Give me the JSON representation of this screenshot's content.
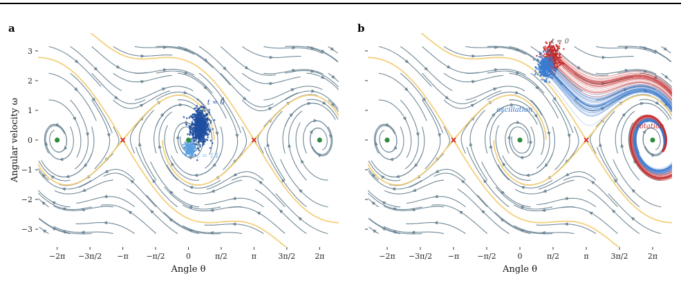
{
  "chart_data": [
    {
      "type": "streamplot",
      "panel": "a",
      "title": "",
      "xlabel": "Angle θ",
      "ylabel": "Angular velocity ω",
      "xlim": [
        -7.2,
        7.2
      ],
      "ylim": [
        -3.6,
        3.6
      ],
      "x_ticks": [
        -6.2832,
        -4.7124,
        -3.1416,
        -1.5708,
        0,
        1.5708,
        3.1416,
        4.7124,
        6.2832
      ],
      "x_tick_labels": [
        "−2π",
        "−3π/2",
        "−π",
        "−π/2",
        "0",
        "π/2",
        "π",
        "3π/2",
        "2π"
      ],
      "y_ticks": [
        -3,
        -2,
        -1,
        0,
        1,
        2,
        3
      ],
      "y_tick_labels": [
        "−3",
        "−2",
        "−1",
        "0",
        "1",
        "2",
        "3"
      ],
      "stable_points": [
        [
          -6.2832,
          0
        ],
        [
          0,
          0
        ],
        [
          6.2832,
          0
        ]
      ],
      "saddle_points": [
        [
          -3.1416,
          0
        ],
        [
          3.1416,
          0
        ]
      ],
      "clusters": [
        {
          "center": [
            0.55,
            0.45
          ],
          "spread": [
            0.22,
            0.28
          ],
          "count": 700,
          "color": "#1f4fa0"
        },
        {
          "center": [
            0.05,
            -0.3
          ],
          "spread": [
            0.12,
            0.12
          ],
          "count": 160,
          "color": "#5aa0e0"
        }
      ],
      "annotations": [
        {
          "text": "t = 0",
          "x": 0.9,
          "y": 1.2,
          "color": "#1f4fa0"
        },
        {
          "text": "t = 14",
          "x": 0.4,
          "y": -0.6,
          "color": "#8fc1ef"
        }
      ]
    },
    {
      "type": "streamplot",
      "panel": "b",
      "title": "",
      "xlabel": "Angle θ",
      "ylabel": "",
      "xlim": [
        -7.2,
        7.2
      ],
      "ylim": [
        -3.6,
        3.6
      ],
      "x_ticks": [
        -6.2832,
        -4.7124,
        -3.1416,
        -1.5708,
        0,
        1.5708,
        3.1416,
        4.7124,
        6.2832
      ],
      "x_tick_labels": [
        "−2π",
        "−3π/2",
        "−π",
        "−π/2",
        "0",
        "π/2",
        "π",
        "3π/2",
        "2π"
      ],
      "y_ticks": [
        -3,
        -2,
        -1,
        0,
        1,
        2,
        3
      ],
      "y_tick_labels": [
        "",
        "",
        "",
        "",
        "",
        "",
        ""
      ],
      "stable_points": [
        [
          -6.2832,
          0
        ],
        [
          0,
          0
        ],
        [
          6.2832,
          0
        ]
      ],
      "saddle_points": [
        [
          -3.1416,
          0
        ],
        [
          3.1416,
          0
        ]
      ],
      "clusters": [
        {
          "center": [
            1.55,
            2.8
          ],
          "spread": [
            0.2,
            0.22
          ],
          "count": 300,
          "color": "#c42a2a"
        },
        {
          "center": [
            1.2,
            2.45
          ],
          "spread": [
            0.18,
            0.2
          ],
          "count": 300,
          "color": "#3a7bd0"
        }
      ],
      "annotations": [
        {
          "text": "t = 0",
          "x": 1.5,
          "y": 3.25,
          "color": "#555555"
        },
        {
          "text": "oscillation",
          "x": -1.1,
          "y": 0.95,
          "color": "#2f6fc4"
        },
        {
          "text": "rotation",
          "x": 5.5,
          "y": 0.4,
          "color": "#c42a2a"
        }
      ]
    }
  ],
  "colors": {
    "stream": "#6e8796",
    "separatrix": "#f3cf7a",
    "stable_point": "#2e8b3a",
    "saddle_point": "#d62828",
    "blue_dark": "#1f4fa0",
    "blue_light": "#5aa0e0",
    "red": "#c42a2a"
  }
}
